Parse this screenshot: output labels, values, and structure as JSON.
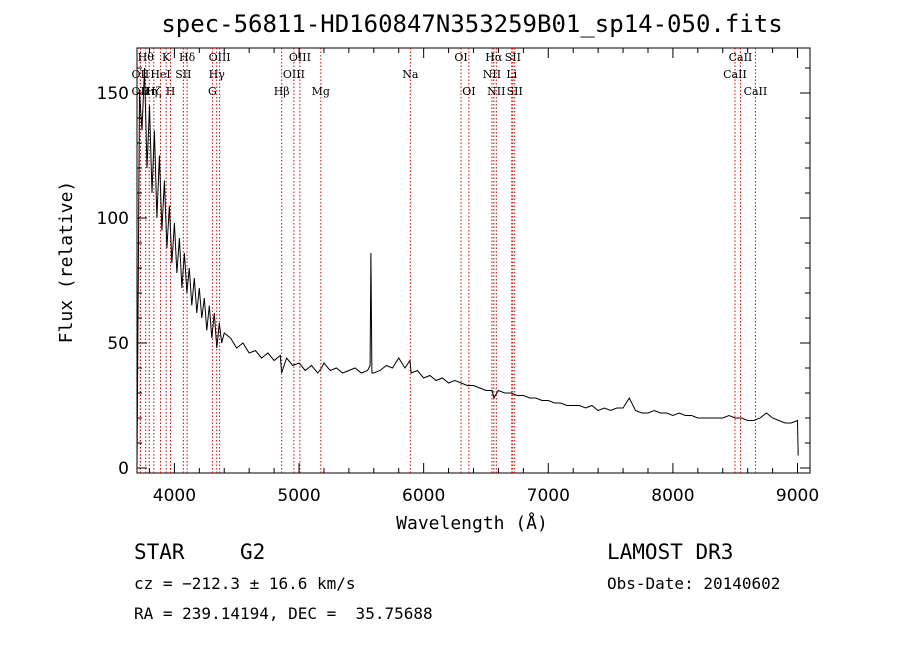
{
  "chart_data": {
    "type": "line",
    "title": "spec-56811-HD160847N353259B01_sp14-050.fits",
    "xlabel": "Wavelength (Å)",
    "ylabel": "Flux (relative)",
    "xlim": [
      3700,
      9100
    ],
    "ylim": [
      -2,
      168
    ],
    "xticks": [
      {
        "value": 4000,
        "label": "4000"
      },
      {
        "value": 5000,
        "label": "5000"
      },
      {
        "value": 6000,
        "label": "6000"
      },
      {
        "value": 7000,
        "label": "7000"
      },
      {
        "value": 8000,
        "label": "8000"
      },
      {
        "value": 9000,
        "label": "9000"
      }
    ],
    "yticks": [
      {
        "value": 0,
        "label": "0"
      },
      {
        "value": 50,
        "label": "50"
      },
      {
        "value": 100,
        "label": "100"
      },
      {
        "value": 150,
        "label": "150"
      }
    ],
    "series": [
      {
        "name": "flux",
        "x": [
          3700,
          3720,
          3740,
          3760,
          3780,
          3800,
          3820,
          3840,
          3860,
          3880,
          3900,
          3920,
          3940,
          3960,
          3980,
          4000,
          4020,
          4040,
          4060,
          4080,
          4100,
          4120,
          4140,
          4160,
          4180,
          4200,
          4220,
          4240,
          4260,
          4280,
          4300,
          4320,
          4340,
          4360,
          4380,
          4400,
          4450,
          4500,
          4550,
          4600,
          4650,
          4700,
          4750,
          4800,
          4850,
          4860,
          4900,
          4950,
          5000,
          5050,
          5100,
          5150,
          5180,
          5200,
          5250,
          5300,
          5350,
          5400,
          5450,
          5500,
          5550,
          5570,
          5577,
          5585,
          5600,
          5650,
          5700,
          5750,
          5800,
          5850,
          5890,
          5900,
          5950,
          6000,
          6050,
          6100,
          6150,
          6200,
          6250,
          6300,
          6350,
          6400,
          6450,
          6500,
          6550,
          6563,
          6600,
          6650,
          6700,
          6750,
          6800,
          6850,
          6900,
          6950,
          7000,
          7050,
          7100,
          7150,
          7200,
          7250,
          7300,
          7350,
          7400,
          7450,
          7500,
          7550,
          7600,
          7650,
          7700,
          7750,
          7800,
          7850,
          7900,
          7950,
          8000,
          8050,
          8100,
          8150,
          8200,
          8250,
          8300,
          8350,
          8400,
          8450,
          8500,
          8550,
          8600,
          8650,
          8700,
          8750,
          8800,
          8850,
          8900,
          8950,
          9000,
          9005
        ],
        "y": [
          0,
          150,
          135,
          160,
          120,
          145,
          110,
          135,
          100,
          125,
          95,
          115,
          88,
          105,
          82,
          98,
          78,
          92,
          72,
          86,
          70,
          80,
          65,
          76,
          62,
          72,
          60,
          68,
          55,
          65,
          52,
          62,
          48,
          58,
          50,
          54,
          52,
          48,
          50,
          46,
          47,
          44,
          46,
          43,
          45,
          38,
          44,
          41,
          42,
          39,
          41,
          38,
          40,
          42,
          39,
          40,
          38,
          39,
          40,
          38,
          39,
          41,
          86,
          38,
          38,
          39,
          41,
          40,
          44,
          40,
          43,
          38,
          39,
          36,
          37,
          35,
          36,
          34,
          35,
          34,
          33,
          33,
          32,
          31,
          31,
          28,
          31,
          30,
          30,
          29,
          29,
          28,
          28,
          27,
          27,
          26,
          26,
          25,
          25,
          25,
          24,
          25,
          23,
          24,
          23,
          24,
          24,
          28,
          23,
          22,
          22,
          23,
          22,
          22,
          21,
          22,
          21,
          21,
          20,
          20,
          20,
          20,
          20,
          21,
          20,
          20,
          19,
          19,
          20,
          22,
          20,
          19,
          18,
          18,
          19,
          5
        ]
      }
    ],
    "lines": [
      {
        "wavelength": 3727,
        "label": "OII",
        "row": 2
      },
      {
        "wavelength": 3727,
        "label": "OII",
        "row": 3
      },
      {
        "wavelength": 3770,
        "label": "Hθ",
        "row": 1
      },
      {
        "wavelength": 3798,
        "label": "Hη",
        "row": 3
      },
      {
        "wavelength": 3835,
        "label": "Hζ",
        "row": 3
      },
      {
        "wavelength": 3889,
        "label": "HeI",
        "row": 2
      },
      {
        "wavelength": 3934,
        "label": "K",
        "row": 1
      },
      {
        "wavelength": 3969,
        "label": "H",
        "row": 3
      },
      {
        "wavelength": 4072,
        "label": "SII",
        "row": 2
      },
      {
        "wavelength": 4102,
        "label": "Hδ",
        "row": 1
      },
      {
        "wavelength": 4305,
        "label": "G",
        "row": 3
      },
      {
        "wavelength": 4340,
        "label": "Hγ",
        "row": 2
      },
      {
        "wavelength": 4363,
        "label": "OIII",
        "row": 1
      },
      {
        "wavelength": 4861,
        "label": "Hβ",
        "row": 3
      },
      {
        "wavelength": 4959,
        "label": "OIII",
        "row": 2
      },
      {
        "wavelength": 5007,
        "label": "OIII",
        "row": 1
      },
      {
        "wavelength": 5175,
        "label": "Mg",
        "row": 3
      },
      {
        "wavelength": 5893,
        "label": "Na",
        "row": 2
      },
      {
        "wavelength": 6300,
        "label": "OI",
        "row": 1
      },
      {
        "wavelength": 6363,
        "label": "OI",
        "row": 3
      },
      {
        "wavelength": 6548,
        "label": "NII",
        "row": 2
      },
      {
        "wavelength": 6563,
        "label": "Hα",
        "row": 1
      },
      {
        "wavelength": 6583,
        "label": "NII",
        "row": 3
      },
      {
        "wavelength": 6707,
        "label": "Li",
        "row": 2
      },
      {
        "wavelength": 6716,
        "label": "SII",
        "row": 1
      },
      {
        "wavelength": 6731,
        "label": "SII",
        "row": 3
      },
      {
        "wavelength": 8498,
        "label": "CaII",
        "row": 2
      },
      {
        "wavelength": 8542,
        "label": "CaII",
        "row": 1
      },
      {
        "wavelength": 8662,
        "label": "CaII",
        "row": 3
      }
    ],
    "colors": {
      "spectrum": "#000000",
      "lines": "#cc0000",
      "axes": "#000000"
    }
  },
  "info": {
    "class_label": "STAR",
    "subclass": "G2",
    "survey": "LAMOST DR3",
    "cz": "cz = −212.3 ± 16.6 km/s",
    "obs_date": "Obs-Date: 20140602",
    "coords": "RA = 239.14194, DEC =  35.75688"
  }
}
